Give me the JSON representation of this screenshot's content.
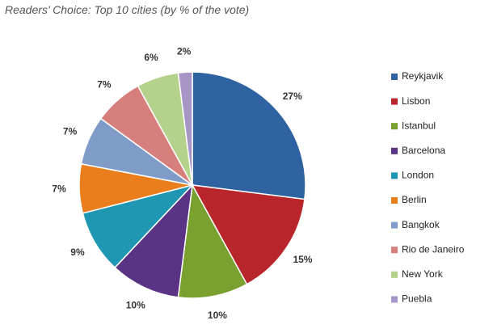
{
  "chart_data": {
    "type": "pie",
    "title": "Readers’ Choice: Top 10 cities (by % of the vote)",
    "legend_position": "right",
    "slices": [
      {
        "name": "Reykjavik",
        "value": 27,
        "label": "27%",
        "color": "#2e62a0"
      },
      {
        "name": "Lisbon",
        "value": 15,
        "label": "15%",
        "color": "#b8262b"
      },
      {
        "name": "Istanbul",
        "value": 10,
        "label": "10%",
        "color": "#7aa12f"
      },
      {
        "name": "Barcelona",
        "value": 10,
        "label": "10%",
        "color": "#5a3385"
      },
      {
        "name": "London",
        "value": 9,
        "label": "9%",
        "color": "#1f97b2"
      },
      {
        "name": "Berlin",
        "value": 7,
        "label": "7%",
        "color": "#ea7d1c"
      },
      {
        "name": "Bangkok",
        "value": 7,
        "label": "7%",
        "color": "#7f9bc8"
      },
      {
        "name": "Rio de Janeiro",
        "value": 7,
        "label": "7%",
        "color": "#d67f7c"
      },
      {
        "name": "New York",
        "value": 6,
        "label": "6%",
        "color": "#b4d28c"
      },
      {
        "name": "Puebla",
        "value": 2,
        "label": "2%",
        "color": "#a795c6"
      }
    ]
  }
}
